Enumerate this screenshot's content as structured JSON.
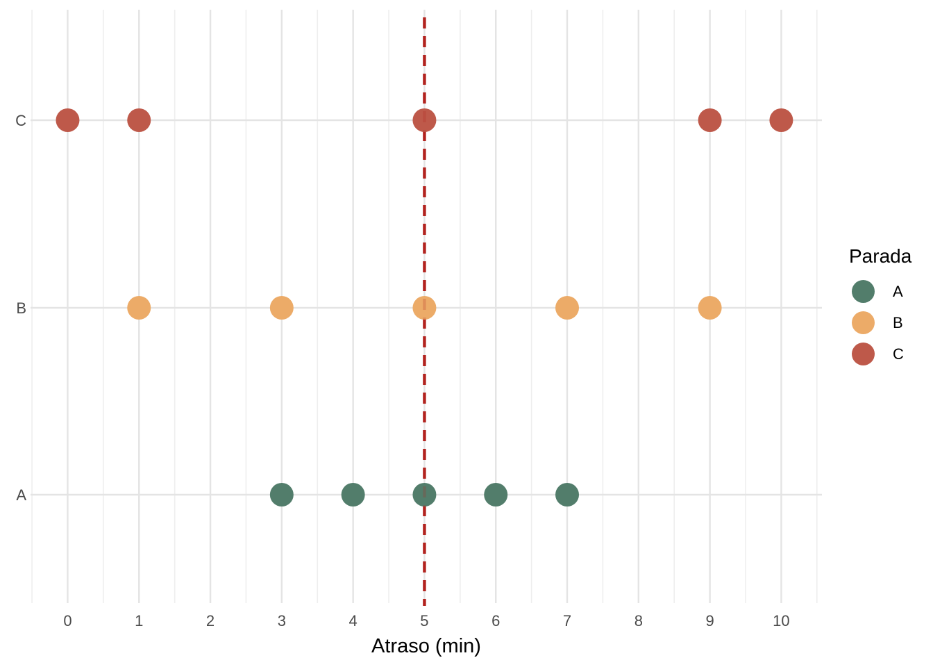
{
  "chart_data": {
    "type": "scatter",
    "title": "",
    "xlabel": "Atraso (min)",
    "ylabel": "",
    "x_ticks": [
      0,
      1,
      2,
      3,
      4,
      5,
      6,
      7,
      8,
      9,
      10
    ],
    "xlim": [
      -0.52,
      10.57
    ],
    "y_categories": [
      "A",
      "B",
      "C"
    ],
    "series": [
      {
        "name": "A",
        "y": "A",
        "color": "#527D6B",
        "x_values": [
          3,
          4,
          5,
          6,
          7
        ]
      },
      {
        "name": "B",
        "y": "B",
        "color": "#ECAB68",
        "x_values": [
          1,
          3,
          5,
          7,
          9
        ]
      },
      {
        "name": "C",
        "y": "C",
        "color": "#BE594A",
        "x_values": [
          0,
          1,
          5,
          9,
          10
        ]
      }
    ],
    "vline": {
      "x": 5,
      "color": "#B2231F",
      "style": "dashed"
    },
    "legend": {
      "title": "Parada",
      "position": "right",
      "entries": [
        "A",
        "B",
        "C"
      ]
    },
    "grid": {
      "show": true,
      "major_color": "#E4E4E4",
      "minor_color": "#EEEEEE"
    },
    "axis_text_color": "#4A4A4A"
  }
}
